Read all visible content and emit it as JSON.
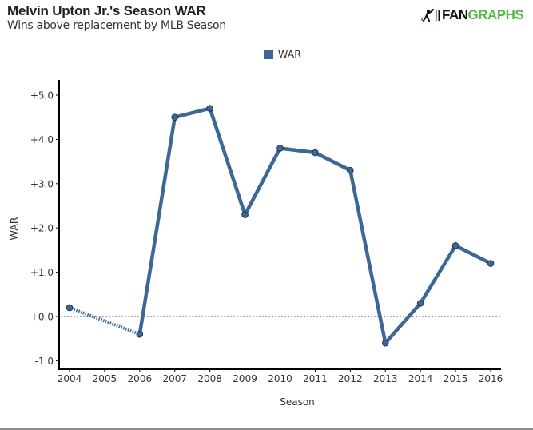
{
  "header": {
    "title": "Melvin Upton Jr.'s Season WAR",
    "subtitle": "Wins above replacement by MLB Season"
  },
  "logo": {
    "part1": "FAN",
    "part2": "GRAPHS",
    "icon": "batter-icon",
    "colors": {
      "dark": "#111111",
      "green": "#55b847"
    }
  },
  "legend": {
    "items": [
      {
        "label": "WAR",
        "color": "#3d6796"
      }
    ]
  },
  "chart_data": {
    "type": "line",
    "title": "Melvin Upton Jr.'s Season WAR",
    "subtitle": "Wins above replacement by MLB Season",
    "xlabel": "Season",
    "ylabel": "WAR",
    "x_ticks": [
      "2004",
      "2005",
      "2006",
      "2007",
      "2008",
      "2009",
      "2010",
      "2011",
      "2012",
      "2013",
      "2014",
      "2015",
      "2016"
    ],
    "xlim": [
      2004,
      2016
    ],
    "y_ticks": [
      "+5.0",
      "+4.0",
      "+3.0",
      "+2.0",
      "+1.0",
      "+0.0",
      "-1.0"
    ],
    "y_tick_values": [
      5,
      4,
      3,
      2,
      1,
      0,
      -1
    ],
    "ylim": [
      -1.0,
      5.4
    ],
    "grid": false,
    "zero_line": true,
    "legend_position": "top-center",
    "series": [
      {
        "name": "WAR",
        "color": "#3d6796",
        "points": [
          {
            "x": 2004,
            "y": 0.2
          },
          {
            "x": 2006,
            "y": -0.4
          },
          {
            "x": 2007,
            "y": 4.5
          },
          {
            "x": 2008,
            "y": 4.7
          },
          {
            "x": 2009,
            "y": 2.3
          },
          {
            "x": 2010,
            "y": 3.8
          },
          {
            "x": 2011,
            "y": 3.7
          },
          {
            "x": 2012,
            "y": 3.3
          },
          {
            "x": 2013,
            "y": -0.6
          },
          {
            "x": 2014,
            "y": 0.3
          },
          {
            "x": 2015,
            "y": 1.6
          },
          {
            "x": 2016,
            "y": 1.2
          }
        ],
        "gap_note": "2005 missing; 2004 to 2006 drawn dashed"
      }
    ]
  }
}
